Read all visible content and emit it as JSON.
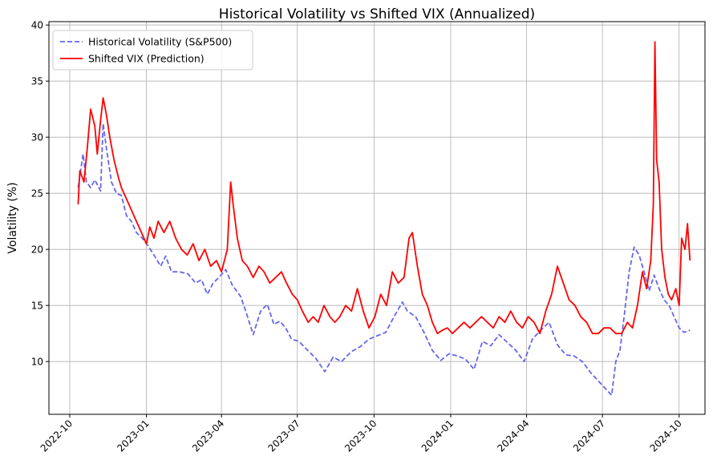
{
  "chart_data": {
    "type": "line",
    "title": "Historical Volatility vs Shifted VIX (Annualized)",
    "xlabel": "",
    "ylabel": "Volatility (%)",
    "xlim": [
      "2022-09-06",
      "2024-11-01"
    ],
    "ylim": [
      5.3,
      40.3
    ],
    "yticks": [
      10,
      15,
      20,
      25,
      30,
      35,
      40
    ],
    "xticks": [
      "2022-10",
      "2023-01",
      "2023-04",
      "2023-07",
      "2023-10",
      "2024-01",
      "2024-04",
      "2024-07",
      "2024-10"
    ],
    "grid": true,
    "legend_position": "top-left",
    "colors": {
      "hv": "#6666ee",
      "vix": "#ff0000"
    },
    "series": [
      {
        "name": "Historical Volatility (S&P500)",
        "style": "dashed",
        "x": [
          "2022-10-11",
          "2022-10-17",
          "2022-10-21",
          "2022-10-26",
          "2022-10-31",
          "2022-11-07",
          "2022-11-10",
          "2022-11-14",
          "2022-11-20",
          "2022-11-26",
          "2022-12-02",
          "2022-12-08",
          "2022-12-14",
          "2022-12-20",
          "2022-12-27",
          "2023-01-03",
          "2023-01-10",
          "2023-01-18",
          "2023-01-24",
          "2023-01-31",
          "2023-02-10",
          "2023-02-20",
          "2023-03-01",
          "2023-03-08",
          "2023-03-15",
          "2023-03-22",
          "2023-03-29",
          "2023-04-06",
          "2023-04-14",
          "2023-04-24",
          "2023-05-01",
          "2023-05-09",
          "2023-05-18",
          "2023-05-26",
          "2023-06-03",
          "2023-06-10",
          "2023-06-17",
          "2023-06-24",
          "2023-07-03",
          "2023-07-12",
          "2023-07-23",
          "2023-08-03",
          "2023-08-13",
          "2023-08-23",
          "2023-09-04",
          "2023-09-14",
          "2023-09-25",
          "2023-10-05",
          "2023-10-15",
          "2023-10-25",
          "2023-11-04",
          "2023-11-10",
          "2023-11-20",
          "2023-11-30",
          "2023-12-10",
          "2023-12-20",
          "2023-12-30",
          "2024-01-09",
          "2024-01-19",
          "2024-01-29",
          "2024-02-08",
          "2024-02-18",
          "2024-02-28",
          "2024-03-09",
          "2024-03-19",
          "2024-03-29",
          "2024-04-08",
          "2024-04-18",
          "2024-04-28",
          "2024-05-08",
          "2024-05-18",
          "2024-05-28",
          "2024-06-07",
          "2024-06-17",
          "2024-06-27",
          "2024-07-07",
          "2024-07-12",
          "2024-07-17",
          "2024-07-22",
          "2024-07-27",
          "2024-08-02",
          "2024-08-08",
          "2024-08-14",
          "2024-08-20",
          "2024-08-26",
          "2024-09-01",
          "2024-09-07",
          "2024-09-13",
          "2024-09-19",
          "2024-09-25",
          "2024-10-01",
          "2024-10-07",
          "2024-10-14"
        ],
        "values": [
          25.5,
          28.5,
          26.0,
          25.5,
          26.2,
          25.2,
          31.2,
          29.0,
          26.0,
          25.0,
          24.8,
          23.0,
          22.5,
          21.5,
          21.0,
          20.3,
          19.5,
          18.5,
          19.4,
          18.0,
          18.0,
          17.8,
          17.0,
          17.3,
          16.0,
          17.0,
          17.5,
          18.2,
          16.8,
          15.8,
          14.3,
          12.4,
          14.5,
          15.1,
          13.3,
          13.6,
          13.0,
          12.0,
          11.8,
          11.1,
          10.3,
          9.1,
          10.4,
          10.0,
          10.9,
          11.3,
          12.0,
          12.3,
          12.6,
          14.0,
          15.3,
          14.5,
          14.0,
          12.6,
          11.0,
          10.1,
          10.7,
          10.5,
          10.2,
          9.3,
          11.8,
          11.4,
          12.4,
          11.7,
          11.0,
          10.0,
          12.0,
          12.8,
          13.5,
          11.5,
          10.6,
          10.5,
          10.0,
          9.0,
          8.2,
          7.4,
          7.0,
          10.0,
          11.0,
          14.0,
          18.0,
          20.2,
          19.5,
          18.0,
          16.3,
          17.7,
          16.5,
          15.5,
          15.0,
          14.0,
          13.0,
          12.6,
          12.8
        ]
      },
      {
        "name": "Shifted VIX (Prediction)",
        "style": "solid",
        "x": [
          "2022-10-11",
          "2022-10-13",
          "2022-10-18",
          "2022-10-22",
          "2022-10-26",
          "2022-10-31",
          "2022-11-03",
          "2022-11-07",
          "2022-11-10",
          "2022-11-14",
          "2022-11-18",
          "2022-11-23",
          "2022-11-28",
          "2022-12-02",
          "2022-12-08",
          "2022-12-14",
          "2022-12-20",
          "2022-12-26",
          "2023-01-01",
          "2023-01-05",
          "2023-01-10",
          "2023-01-15",
          "2023-01-22",
          "2023-01-29",
          "2023-02-05",
          "2023-02-12",
          "2023-02-19",
          "2023-02-26",
          "2023-03-05",
          "2023-03-12",
          "2023-03-19",
          "2023-03-26",
          "2023-04-01",
          "2023-04-08",
          "2023-04-12",
          "2023-04-15",
          "2023-04-20",
          "2023-04-26",
          "2023-05-02",
          "2023-05-09",
          "2023-05-16",
          "2023-05-22",
          "2023-05-29",
          "2023-06-05",
          "2023-06-12",
          "2023-06-18",
          "2023-06-25",
          "2023-07-01",
          "2023-07-07",
          "2023-07-14",
          "2023-07-20",
          "2023-07-26",
          "2023-08-02",
          "2023-08-09",
          "2023-08-15",
          "2023-08-21",
          "2023-08-28",
          "2023-09-04",
          "2023-09-11",
          "2023-09-18",
          "2023-09-25",
          "2023-10-02",
          "2023-10-09",
          "2023-10-16",
          "2023-10-23",
          "2023-10-30",
          "2023-11-06",
          "2023-11-12",
          "2023-11-16",
          "2023-11-22",
          "2023-11-28",
          "2023-12-04",
          "2023-12-10",
          "2023-12-16",
          "2023-12-22",
          "2023-12-28",
          "2024-01-03",
          "2024-01-10",
          "2024-01-17",
          "2024-01-24",
          "2024-01-31",
          "2024-02-07",
          "2024-02-14",
          "2024-02-21",
          "2024-02-28",
          "2024-03-06",
          "2024-03-13",
          "2024-03-20",
          "2024-03-27",
          "2024-04-03",
          "2024-04-10",
          "2024-04-17",
          "2024-04-24",
          "2024-05-01",
          "2024-05-08",
          "2024-05-15",
          "2024-05-22",
          "2024-05-29",
          "2024-06-05",
          "2024-06-12",
          "2024-06-19",
          "2024-06-26",
          "2024-07-03",
          "2024-07-10",
          "2024-07-17",
          "2024-07-24",
          "2024-07-31",
          "2024-08-06",
          "2024-08-12",
          "2024-08-18",
          "2024-08-23",
          "2024-08-28",
          "2024-08-31",
          "2024-09-02",
          "2024-09-04",
          "2024-09-07",
          "2024-09-10",
          "2024-09-14",
          "2024-09-18",
          "2024-09-22",
          "2024-09-27",
          "2024-10-01",
          "2024-10-04",
          "2024-10-08",
          "2024-10-11",
          "2024-10-14"
        ],
        "values": [
          24.0,
          27.0,
          26.0,
          29.0,
          32.5,
          31.0,
          28.5,
          31.5,
          33.5,
          32.0,
          30.0,
          28.0,
          26.5,
          25.5,
          24.5,
          23.5,
          22.5,
          21.5,
          20.5,
          22.0,
          21.0,
          22.5,
          21.5,
          22.5,
          21.0,
          20.0,
          19.5,
          20.5,
          19.0,
          20.0,
          18.5,
          19.0,
          18.0,
          20.0,
          26.0,
          24.0,
          21.0,
          19.0,
          18.5,
          17.5,
          18.5,
          18.0,
          17.0,
          17.5,
          18.0,
          17.0,
          16.0,
          15.5,
          14.5,
          13.5,
          14.0,
          13.5,
          15.0,
          14.0,
          13.5,
          14.0,
          15.0,
          14.5,
          16.5,
          14.5,
          13.0,
          14.0,
          16.0,
          15.0,
          18.0,
          17.0,
          17.5,
          21.0,
          21.5,
          18.5,
          16.0,
          15.0,
          13.5,
          12.5,
          12.8,
          13.0,
          12.5,
          13.0,
          13.5,
          13.0,
          13.5,
          14.0,
          13.5,
          13.0,
          14.0,
          13.5,
          14.5,
          13.5,
          13.0,
          14.0,
          13.5,
          12.5,
          14.5,
          16.0,
          18.5,
          17.0,
          15.5,
          15.0,
          14.0,
          13.5,
          12.5,
          12.5,
          13.0,
          13.0,
          12.5,
          12.5,
          13.5,
          13.0,
          15.0,
          18.0,
          16.5,
          19.0,
          24.0,
          38.5,
          28.0,
          26.0,
          20.0,
          17.5,
          16.0,
          15.5,
          16.5,
          15.0,
          21.0,
          20.0,
          22.3,
          19.0
        ]
      }
    ]
  }
}
